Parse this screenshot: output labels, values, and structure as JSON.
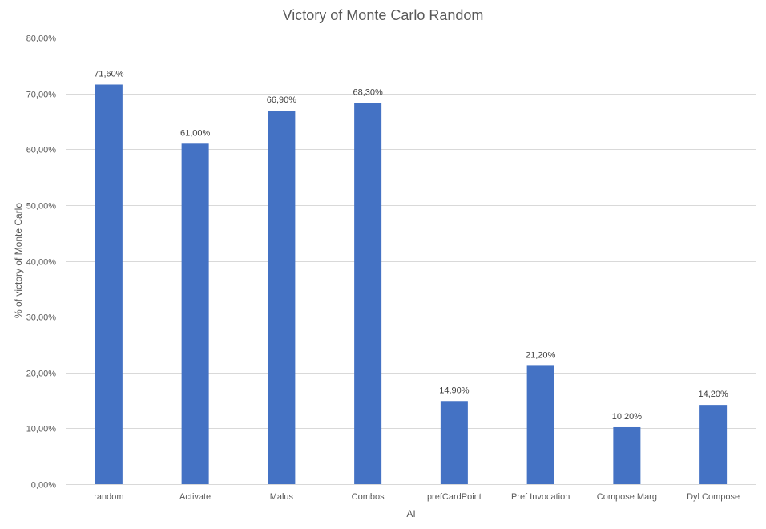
{
  "chart_data": {
    "type": "bar",
    "title": "Victory of Monte Carlo Random",
    "xlabel": "AI",
    "ylabel": "% of victory of Monte Carlo",
    "categories": [
      "random",
      "Activate",
      "Malus",
      "Combos",
      "prefCardPoint",
      "Pref Invocation",
      "Compose Marg",
      "Dyl Compose"
    ],
    "values": [
      71.6,
      61.0,
      66.9,
      68.3,
      14.9,
      21.2,
      10.2,
      14.2
    ],
    "value_labels": [
      "71,60%",
      "61,00%",
      "66,90%",
      "68,30%",
      "14,90%",
      "21,20%",
      "10,20%",
      "14,20%"
    ],
    "ylim": [
      0,
      80
    ],
    "y_ticks": [
      0,
      10,
      20,
      30,
      40,
      50,
      60,
      70,
      80
    ],
    "y_tick_labels": [
      "0,00%",
      "10,00%",
      "20,00%",
      "30,00%",
      "40,00%",
      "50,00%",
      "60,00%",
      "70,00%",
      "80,00%"
    ],
    "grid": true,
    "legend": "none",
    "bar_color": "#4472c4"
  }
}
